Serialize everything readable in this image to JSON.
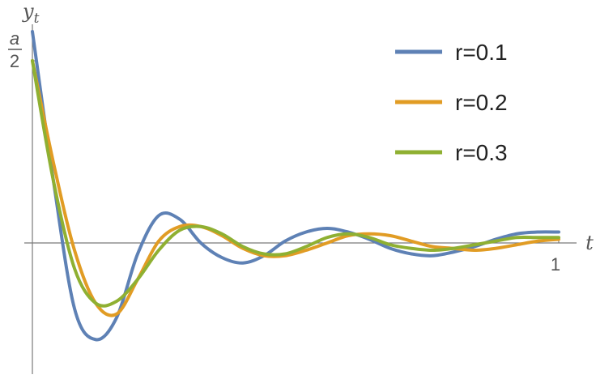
{
  "chart_data": {
    "type": "line",
    "title": "",
    "xlabel": "t",
    "ylabel": "y",
    "ylabel_subscript": "t",
    "xlim": [
      0,
      1
    ],
    "ylim": [
      -0.36,
      0.6
    ],
    "x_ticks": [
      {
        "value": 1,
        "label": "1"
      }
    ],
    "y_ticks": [
      {
        "value": 0.5,
        "label_num": "a",
        "label_den": "2"
      }
    ],
    "grid": false,
    "legend": "top-right",
    "series": [
      {
        "name": "r=0.1",
        "color": "#5E81B5",
        "x": [
          0,
          0.04,
          0.08,
          0.12,
          0.16,
          0.2,
          0.24,
          0.28,
          0.32,
          0.36,
          0.4,
          0.44,
          0.48,
          0.52,
          0.56,
          0.6,
          0.64,
          0.68,
          0.72,
          0.76,
          0.8,
          0.84,
          0.88,
          0.92,
          0.96,
          1.0
        ],
        "values": [
          0.58,
          0.17,
          -0.18,
          -0.265,
          -0.205,
          -0.03,
          0.075,
          0.065,
          0.0,
          -0.04,
          -0.055,
          -0.035,
          0.005,
          0.03,
          0.04,
          0.03,
          0.01,
          -0.015,
          -0.03,
          -0.035,
          -0.025,
          -0.01,
          0.01,
          0.025,
          0.03,
          0.03
        ]
      },
      {
        "name": "r=0.2",
        "color": "#E19C24",
        "x": [
          0,
          0.04,
          0.08,
          0.12,
          0.16,
          0.2,
          0.24,
          0.28,
          0.32,
          0.36,
          0.4,
          0.44,
          0.48,
          0.52,
          0.56,
          0.6,
          0.64,
          0.68,
          0.72,
          0.76,
          0.8,
          0.84,
          0.88,
          0.92,
          0.96,
          1.0
        ],
        "values": [
          0.5,
          0.22,
          -0.02,
          -0.165,
          -0.195,
          -0.1,
          0.005,
          0.045,
          0.045,
          0.02,
          -0.015,
          -0.035,
          -0.035,
          -0.02,
          0.0,
          0.02,
          0.025,
          0.02,
          0.005,
          -0.01,
          -0.015,
          -0.02,
          -0.015,
          -0.005,
          0.005,
          0.01
        ]
      },
      {
        "name": "r=0.3",
        "color": "#8FB032",
        "x": [
          0,
          0.04,
          0.08,
          0.12,
          0.16,
          0.2,
          0.24,
          0.28,
          0.32,
          0.36,
          0.4,
          0.44,
          0.48,
          0.52,
          0.56,
          0.6,
          0.64,
          0.68,
          0.72,
          0.76,
          0.8,
          0.84,
          0.88,
          0.92,
          0.96,
          1.0
        ],
        "values": [
          0.5,
          0.17,
          -0.07,
          -0.165,
          -0.16,
          -0.1,
          -0.02,
          0.035,
          0.045,
          0.025,
          -0.01,
          -0.03,
          -0.03,
          -0.01,
          0.015,
          0.025,
          0.015,
          -0.005,
          -0.015,
          -0.02,
          -0.015,
          -0.005,
          0.005,
          0.015,
          0.015,
          0.015
        ]
      }
    ]
  }
}
